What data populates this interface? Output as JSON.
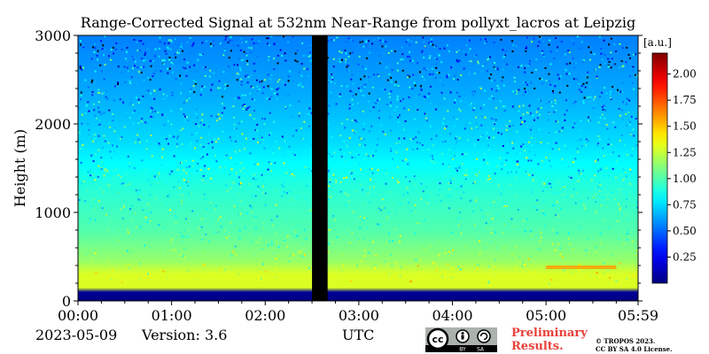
{
  "figure": {
    "date": "2023-05-09",
    "version": "Version: 3.6",
    "preliminary": [
      "Preliminary",
      "Results."
    ],
    "copyright": [
      "© TROPOS 2023.",
      "CC BY SA 4.0 License."
    ],
    "license_badge": {
      "cc": "cc",
      "by": "BY",
      "sa": "SA"
    },
    "colors": {
      "preliminary": "#e8413a",
      "data_gap": "#000000"
    }
  },
  "chart_data": {
    "type": "heatmap",
    "title": "Range-Corrected Signal at 532nm Near-Range from pollyxt_lacros at Leipzig",
    "xlabel": "UTC",
    "ylabel": "Height (m)",
    "x_ticks": [
      "00:00",
      "01:00",
      "02:00",
      "03:00",
      "04:00",
      "05:00",
      "05:59"
    ],
    "x_range": [
      "00:00",
      "05:59"
    ],
    "y_ticks": [
      0,
      1000,
      2000,
      3000
    ],
    "ylim": [
      0,
      3000
    ],
    "colorbar": {
      "unit": "[a.u.]",
      "ticks": [
        0.25,
        0.5,
        0.75,
        1.0,
        1.25,
        1.5,
        1.75,
        2.0
      ],
      "tick_labels": [
        "0.25",
        "0.50",
        "0.75",
        "1.00",
        "1.25",
        "1.50",
        "1.75",
        "2.00"
      ],
      "range": [
        0,
        2.2
      ],
      "colormap": "jet"
    },
    "data_gap": {
      "start": "02:30",
      "end": "02:40"
    },
    "profile": [
      {
        "height_m": 0,
        "value": 0.0
      },
      {
        "height_m": 100,
        "value": 0.05
      },
      {
        "height_m": 150,
        "value": 1.3
      },
      {
        "height_m": 300,
        "value": 1.3
      },
      {
        "height_m": 450,
        "value": 1.15
      },
      {
        "height_m": 800,
        "value": 1.0
      },
      {
        "height_m": 1300,
        "value": 0.9
      },
      {
        "height_m": 1800,
        "value": 0.75
      },
      {
        "height_m": 2300,
        "value": 0.65
      },
      {
        "height_m": 3000,
        "value": 0.55
      }
    ],
    "features": [
      {
        "label": "aerosol layer",
        "time_start": "05:00",
        "time_end": "05:45",
        "height_m": 380,
        "value": 1.6
      }
    ]
  }
}
